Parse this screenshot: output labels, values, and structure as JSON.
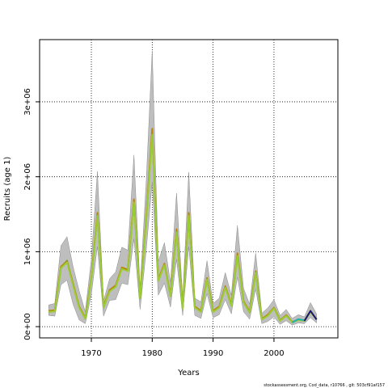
{
  "chart_data": {
    "type": "line",
    "title": "",
    "xlabel": "Years",
    "ylabel": "Recruits (age 1)",
    "xlim": [
      1961.5,
      2010.5
    ],
    "ylim": [
      -150000,
      3830000
    ],
    "x_ticks": [
      1970,
      1980,
      1990,
      2000
    ],
    "y_ticks": [
      0,
      1000000,
      2000000,
      3000000
    ],
    "y_tick_labels": [
      "0e+00",
      "1e+06",
      "2e+06",
      "3e+06"
    ],
    "grid": true,
    "x": [
      1963,
      1964,
      1965,
      1966,
      1967,
      1968,
      1969,
      1970,
      1971,
      1972,
      1973,
      1974,
      1975,
      1976,
      1977,
      1978,
      1979,
      1980,
      1981,
      1982,
      1983,
      1984,
      1985,
      1986,
      1987,
      1988,
      1989,
      1990,
      1991,
      1992,
      1993,
      1994,
      1995,
      1996,
      1997,
      1998,
      1999,
      2000,
      2001,
      2002,
      2003,
      2004,
      2005,
      2006,
      2007
    ],
    "band": {
      "color": "#bebebe",
      "upper": [
        290000,
        310000,
        1080000,
        1200000,
        800000,
        480000,
        200000,
        900000,
        2070000,
        340000,
        640000,
        730000,
        1060000,
        1020000,
        2290000,
        510000,
        1920000,
        3680000,
        870000,
        1120000,
        590000,
        1780000,
        380000,
        2060000,
        380000,
        330000,
        880000,
        310000,
        380000,
        720000,
        420000,
        1350000,
        510000,
        300000,
        980000,
        180000,
        250000,
        360000,
        150000,
        230000,
        110000,
        160000,
        130000,
        320000,
        170000
      ],
      "lower": [
        150000,
        140000,
        560000,
        620000,
        300000,
        90000,
        40000,
        430000,
        1070000,
        140000,
        350000,
        360000,
        580000,
        560000,
        1170000,
        230000,
        1010000,
        1930000,
        420000,
        580000,
        260000,
        900000,
        150000,
        1070000,
        150000,
        110000,
        440000,
        120000,
        160000,
        360000,
        170000,
        660000,
        200000,
        100000,
        500000,
        40000,
        70000,
        130000,
        30000,
        80000,
        20000,
        50000,
        40000,
        120000,
        50000
      ]
    },
    "series": [
      {
        "color": "#6b8e23",
        "values": [
          200000,
          210000,
          790000,
          880000,
          560000,
          260000,
          110000,
          640000,
          1500000,
          260000,
          480000,
          540000,
          780000,
          750000,
          1680000,
          380000,
          1420000,
          2600000,
          620000,
          830000,
          410000,
          1280000,
          240000,
          1500000,
          260000,
          200000,
          640000,
          200000,
          260000,
          530000,
          280000,
          960000,
          330000,
          190000,
          730000,
          100000,
          150000,
          250000,
          80000,
          150000,
          60000,
          90000,
          80000,
          200000,
          100000
        ]
      },
      {
        "color": "#b8860b",
        "values": [
          210000,
          220000,
          800000,
          870000,
          570000,
          270000,
          115000,
          650000,
          1520000,
          270000,
          490000,
          550000,
          790000,
          760000,
          1700000,
          390000,
          1440000,
          2640000,
          630000,
          840000,
          420000,
          1300000,
          250000,
          1520000,
          270000,
          210000,
          650000,
          210000,
          270000,
          540000,
          290000,
          980000,
          340000,
          200000,
          740000,
          105000,
          160000,
          255000,
          85000,
          155000,
          62000,
          92000,
          82000,
          205000,
          102000
        ]
      },
      {
        "color": "#9acd32",
        "values": [
          195000,
          205000,
          780000,
          860000,
          550000,
          255000,
          105000,
          630000,
          1480000,
          255000,
          470000,
          530000,
          770000,
          740000,
          1660000,
          375000,
          1400000,
          2560000,
          610000,
          820000,
          405000,
          1260000,
          235000,
          1480000,
          255000,
          195000,
          630000,
          195000,
          255000,
          520000,
          275000,
          945000,
          325000,
          185000,
          720000,
          95000,
          145000,
          245000,
          78000,
          145000,
          58000,
          88000,
          78000,
          195000,
          98000
        ]
      },
      {
        "color": "#20b2aa",
        "values": [
          null,
          null,
          null,
          null,
          null,
          null,
          null,
          null,
          null,
          null,
          null,
          null,
          null,
          null,
          null,
          null,
          null,
          null,
          null,
          null,
          null,
          null,
          null,
          null,
          null,
          null,
          null,
          null,
          null,
          null,
          null,
          null,
          null,
          null,
          null,
          null,
          null,
          null,
          null,
          null,
          55000,
          100000,
          85000,
          null,
          null
        ]
      },
      {
        "color": "#191970",
        "values": [
          null,
          null,
          null,
          null,
          null,
          null,
          null,
          null,
          null,
          null,
          null,
          null,
          null,
          null,
          null,
          null,
          null,
          null,
          null,
          null,
          null,
          null,
          null,
          null,
          null,
          null,
          null,
          null,
          null,
          null,
          null,
          null,
          null,
          null,
          null,
          null,
          null,
          null,
          null,
          null,
          null,
          null,
          75000,
          210000,
          95000
        ]
      }
    ]
  },
  "footer_text": "stockassessment.org, Cod_data, r10766 , git: 503cf91af157"
}
